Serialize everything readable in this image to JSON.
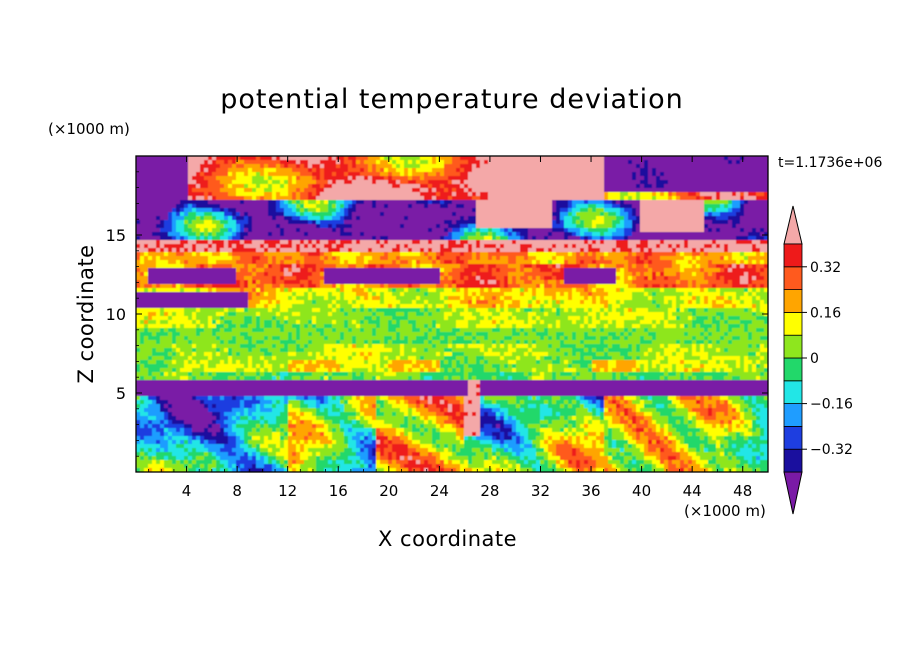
{
  "chart_data": {
    "type": "heatmap",
    "title": "potential temperature deviation",
    "xlabel": "X coordinate",
    "ylabel": "Z coordinate",
    "x_unit": "(×1000 m)",
    "y_unit": "(×1000 m)",
    "time_label": "t=1.1736e+06",
    "xlim": [
      0,
      50
    ],
    "ylim": [
      0,
      20
    ],
    "x_ticks": [
      4,
      8,
      12,
      16,
      20,
      24,
      28,
      32,
      36,
      40,
      44,
      48
    ],
    "y_ticks": [
      5,
      10,
      15
    ],
    "colorbar": {
      "levels": [
        -0.4,
        -0.32,
        -0.24,
        -0.16,
        -0.08,
        0,
        0.08,
        0.16,
        0.24,
        0.32,
        0.4
      ],
      "tick_labels": [
        "0.32",
        "0.16",
        "0",
        "−0.16",
        "−0.32"
      ],
      "tick_values": [
        0.32,
        0.16,
        0,
        -0.16,
        -0.32
      ],
      "colors": [
        "#7a1aa6",
        "#1a0f9e",
        "#1e3ee0",
        "#1f9dff",
        "#22e6e6",
        "#22d86a",
        "#8ee61e",
        "#ffff00",
        "#ffa500",
        "#ff5a1e",
        "#ee1a1a",
        "#f4a8a8"
      ],
      "extend": "both"
    },
    "layers": [
      {
        "z_min": 16.5,
        "z_max": 20,
        "description_value": 0.4
      },
      {
        "z_min": 14.5,
        "z_max": 17,
        "description_value": -0.4
      },
      {
        "z_min": 11,
        "z_max": 14.5,
        "description_value": 0.3
      },
      {
        "z_min": 10,
        "z_max": 11.5,
        "description_value": -0.4
      },
      {
        "z_min": 5.8,
        "z_max": 10,
        "description_value": 0.05
      },
      {
        "z_min": 4.8,
        "z_max": 5.6,
        "description_value": -0.4
      },
      {
        "z_min": 0,
        "z_max": 4.8,
        "description_value": 0.1
      }
    ]
  }
}
